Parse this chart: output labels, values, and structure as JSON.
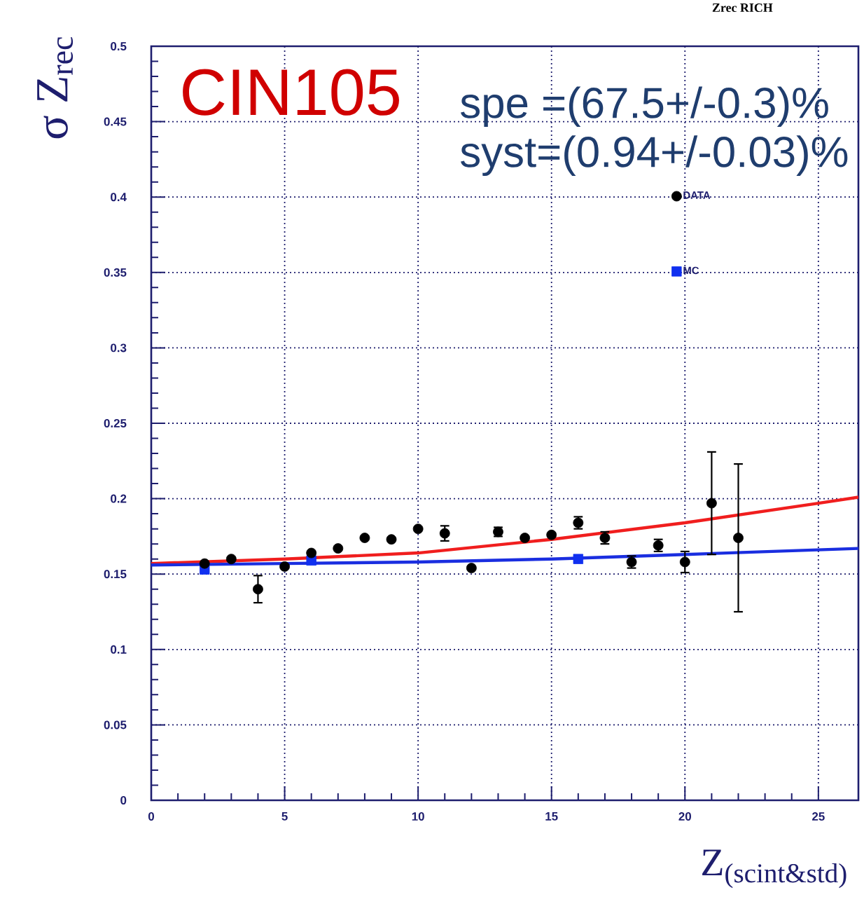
{
  "chart_data": {
    "type": "scatter",
    "title": "Zrec RICH",
    "xlabel": "Z$_{(scint&std)}$",
    "ylabel": "σ Z$_{rec}$",
    "annotations": [
      "CIN105",
      "spe =(67.5+/-0.3)%",
      "syst=(0.94+/-0.03)%"
    ],
    "xlim": [
      0,
      26.5
    ],
    "ylim": [
      0,
      0.5
    ],
    "xticks": [
      0,
      5,
      10,
      15,
      20,
      25
    ],
    "yticks": [
      0,
      0.05,
      0.1,
      0.15,
      0.2,
      0.25,
      0.3,
      0.35,
      0.4,
      0.45,
      0.5
    ],
    "grid": true,
    "legend": "top right",
    "series": [
      {
        "name": "DATA",
        "color": "#000000",
        "marker": "circle",
        "x": [
          2,
          3,
          4,
          5,
          6,
          7,
          8,
          9,
          10,
          11,
          12,
          13,
          14,
          15,
          16,
          17,
          18,
          19,
          20,
          21,
          22
        ],
        "values": [
          0.157,
          0.16,
          0.14,
          0.155,
          0.164,
          0.167,
          0.174,
          0.173,
          0.18,
          0.177,
          0.154,
          0.178,
          0.174,
          0.176,
          0.184,
          0.174,
          0.158,
          0.169,
          0.158,
          0.197,
          0.174
        ],
        "errors": [
          null,
          null,
          0.009,
          null,
          null,
          null,
          null,
          null,
          null,
          0.005,
          null,
          0.003,
          null,
          null,
          0.004,
          0.004,
          0.004,
          0.004,
          0.007,
          0.034,
          0.049
        ]
      },
      {
        "name": "MC",
        "color": "#1030f0",
        "marker": "square",
        "x": [
          2,
          6,
          16
        ],
        "values": [
          0.153,
          0.159,
          0.16
        ]
      },
      {
        "type": "line",
        "color": "#f01e1e",
        "x": [
          0,
          5,
          10,
          15,
          20,
          25,
          26.5
        ],
        "values": [
          0.157,
          0.16,
          0.164,
          0.173,
          0.184,
          0.197,
          0.201
        ]
      },
      {
        "type": "line",
        "color": "#1a2ee0",
        "x": [
          0,
          5,
          10,
          15,
          20,
          26.5
        ],
        "values": [
          0.156,
          0.157,
          0.158,
          0.16,
          0.163,
          0.167
        ]
      }
    ]
  }
}
